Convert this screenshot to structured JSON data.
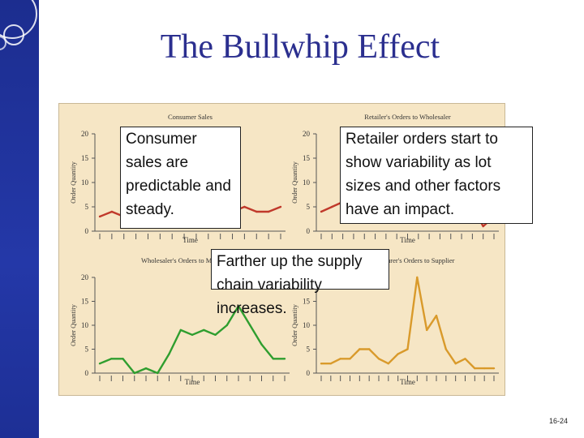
{
  "slide": {
    "title": "The Bullwhip Effect",
    "page_number": "16-24",
    "colors": {
      "sidebar": "#1c2d8f",
      "title": "#2b2f8f",
      "panel": "#f6e6c5",
      "series_red": "#c0392b",
      "series_green": "#2f9e2f",
      "series_orange": "#d99a2b"
    }
  },
  "callouts": {
    "consumer": "Consumer sales are predictable and steady.",
    "retailer": "Retailer orders start to show variability as lot sizes and other factors have an impact.",
    "supply": "Farther up the supply chain variability increases."
  },
  "chart_data": [
    {
      "type": "line",
      "title": "Consumer Sales",
      "xlabel": "Time",
      "ylabel": "Order Quantity",
      "ylim": [
        0,
        20
      ],
      "yticks": [
        0,
        5,
        10,
        15,
        20
      ],
      "color": "#c0392b",
      "x": [
        1,
        2,
        3,
        4,
        5,
        6,
        7,
        8,
        9,
        10,
        11,
        12,
        13,
        14,
        15,
        16
      ],
      "values": [
        3,
        4,
        3,
        5,
        4,
        3,
        4,
        5,
        4,
        3,
        4,
        4,
        5,
        4,
        4,
        5
      ]
    },
    {
      "type": "line",
      "title": "Retailer's Orders to Wholesaler",
      "xlabel": "Time",
      "ylabel": "Order Quantity",
      "ylim": [
        0,
        20
      ],
      "yticks": [
        0,
        5,
        10,
        15,
        20
      ],
      "color": "#c0392b",
      "x": [
        1,
        2,
        3,
        4,
        5,
        6,
        7,
        8,
        9,
        10,
        11,
        12,
        13,
        14,
        15,
        16,
        17
      ],
      "values": [
        4,
        5,
        6,
        4,
        5,
        6,
        8,
        7,
        5,
        4,
        6,
        8,
        5,
        6,
        5,
        1,
        3
      ]
    },
    {
      "type": "line",
      "title": "Wholesaler's Orders to Manufacturer",
      "xlabel": "Time",
      "ylabel": "Order Quantity",
      "ylim": [
        0,
        20
      ],
      "yticks": [
        0,
        5,
        10,
        15,
        20
      ],
      "color": "#2f9e2f",
      "x": [
        1,
        2,
        3,
        4,
        5,
        6,
        7,
        8,
        9,
        10,
        11,
        12,
        13,
        14,
        15,
        16,
        17
      ],
      "values": [
        2,
        3,
        3,
        0,
        1,
        0,
        4,
        9,
        8,
        9,
        8,
        10,
        14,
        10,
        6,
        3,
        3
      ]
    },
    {
      "type": "line",
      "title": "Manufacturer's Orders to Supplier",
      "xlabel": "Time",
      "ylabel": "Order Quantity",
      "ylim": [
        0,
        20
      ],
      "yticks": [
        0,
        5,
        10,
        15,
        20
      ],
      "color": "#d99a2b",
      "x": [
        1,
        2,
        3,
        4,
        5,
        6,
        7,
        8,
        9,
        10,
        11,
        12,
        13,
        14,
        15,
        16,
        17,
        18,
        19
      ],
      "values": [
        2,
        2,
        3,
        3,
        5,
        5,
        3,
        2,
        4,
        5,
        20,
        9,
        12,
        5,
        2,
        3,
        1,
        1,
        1
      ]
    }
  ]
}
